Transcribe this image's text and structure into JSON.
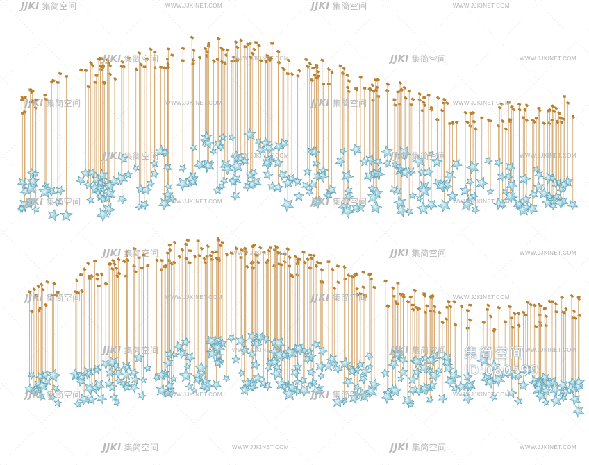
{
  "image": {
    "subject": "product-render-of-hanging-starfish-chandelier",
    "colors": {
      "background": "#ffffff",
      "rod": "#d2a46a",
      "cap": "#b9812f",
      "starfish_fill": "#9fd0de",
      "starfish_edge": "#5aa1b6",
      "watermark": "#b9b9b9"
    }
  },
  "watermark": {
    "logo_mark": "JJKI",
    "logo_text": "集简空间",
    "url": "WWW.JJKINET.COM"
  },
  "badge": {
    "brand": "集简空间",
    "id": "ID:080599"
  }
}
